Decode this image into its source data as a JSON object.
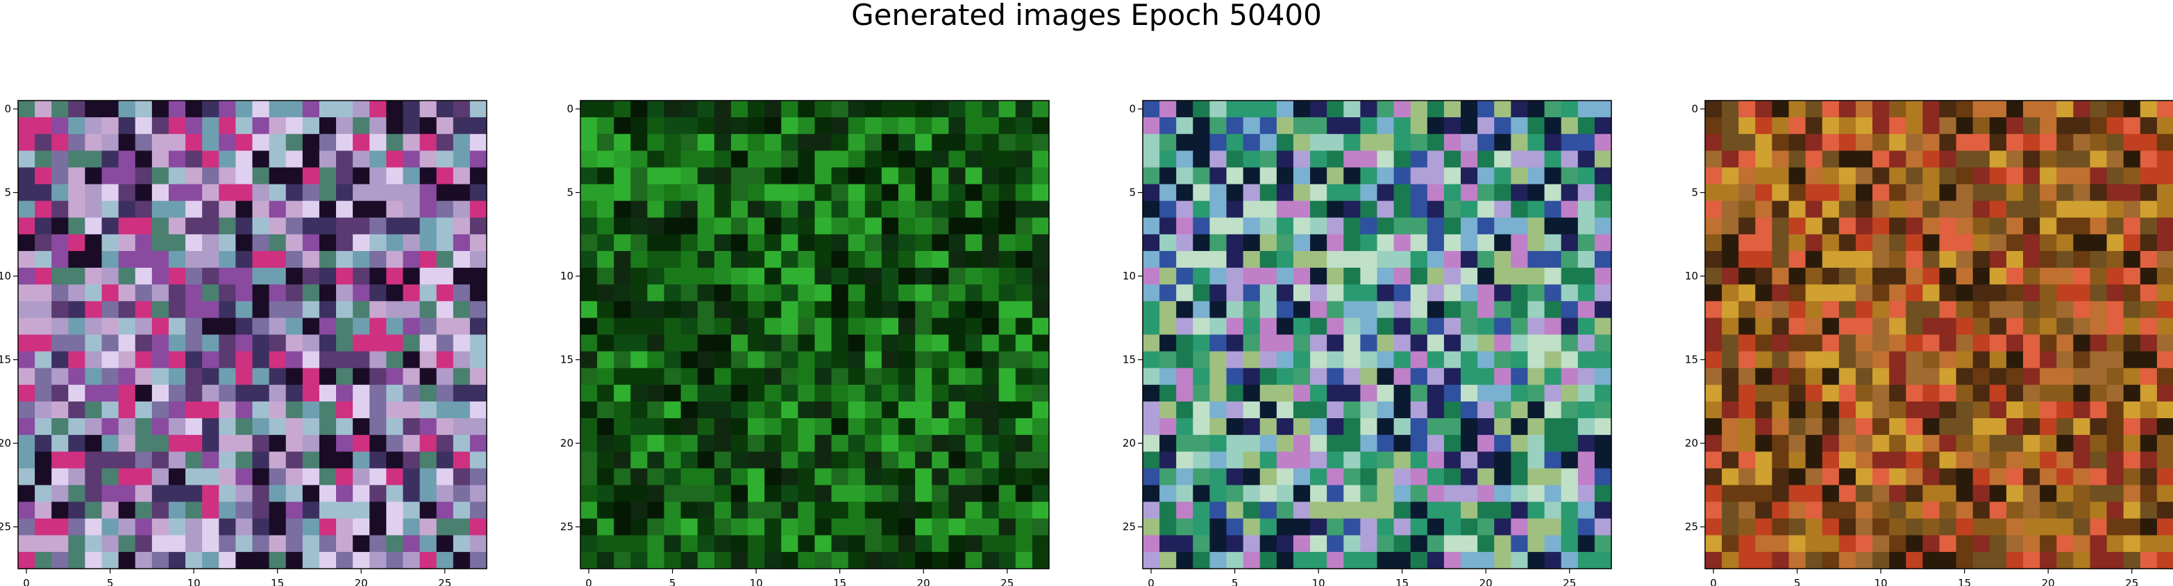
{
  "title": "Generated images Epoch 50400",
  "chart_data": [
    {
      "type": "heatmap",
      "grid": "28x28 pixel image",
      "xlim": [
        -0.5,
        27.5
      ],
      "ylim": [
        27.5,
        -0.5
      ],
      "x_ticks": [
        "0",
        "5",
        "10",
        "15",
        "20",
        "25"
      ],
      "y_ticks": [
        "0",
        "5",
        "10",
        "15",
        "20",
        "25"
      ],
      "palette": [
        "#7a6fa0",
        "#b09cc8",
        "#6e9fb0",
        "#c8a8d0",
        "#3c3060",
        "#d03080",
        "#e0d0f0",
        "#4a8070",
        "#1a0c26",
        "#8a4aa0",
        "#a0c0d0",
        "#5a3a70"
      ]
    },
    {
      "type": "heatmap",
      "grid": "28x28 pixel image",
      "xlim": [
        -0.5,
        27.5
      ],
      "ylim": [
        27.5,
        -0.5
      ],
      "x_ticks": [
        "0",
        "5",
        "10",
        "15",
        "20",
        "25"
      ],
      "y_ticks": [
        "0",
        "5",
        "10",
        "15",
        "20",
        "25"
      ],
      "palette": [
        "#0a3a0a",
        "#125a12",
        "#1a7a1a",
        "#062a06",
        "#228a22",
        "#0e4a14",
        "#041804",
        "#2aa02a",
        "#102810",
        "#1e6a1e",
        "#0c3010",
        "#30b030"
      ]
    },
    {
      "type": "heatmap",
      "grid": "28x28 pixel image",
      "xlim": [
        -0.5,
        27.5
      ],
      "ylim": [
        27.5,
        -0.5
      ],
      "x_ticks": [
        "0",
        "5",
        "10",
        "15",
        "20",
        "25"
      ],
      "y_ticks": [
        "0",
        "5",
        "10",
        "15",
        "20",
        "25"
      ],
      "palette": [
        "#1a7a50",
        "#2a9a70",
        "#9ad0c0",
        "#7ab0d0",
        "#b0a0d8",
        "#3050a0",
        "#c0e0c8",
        "#40a070",
        "#20205a",
        "#a0c080",
        "#c080c8",
        "#0a1a30"
      ]
    },
    {
      "type": "heatmap",
      "grid": "28x28 pixel image",
      "xlim": [
        -0.5,
        27.5
      ],
      "ylim": [
        27.5,
        -0.5
      ],
      "x_ticks": [
        "0",
        "5",
        "10",
        "15",
        "20",
        "25"
      ],
      "y_ticks": [
        "0",
        "5",
        "10",
        "15",
        "20",
        "25"
      ],
      "palette": [
        "#8a5a1a",
        "#b07a20",
        "#6a3a10",
        "#c04020",
        "#d0a030",
        "#4a2a10",
        "#8a2a20",
        "#a06a30",
        "#2a1a0a",
        "#c07030",
        "#705020",
        "#e06040"
      ]
    }
  ]
}
